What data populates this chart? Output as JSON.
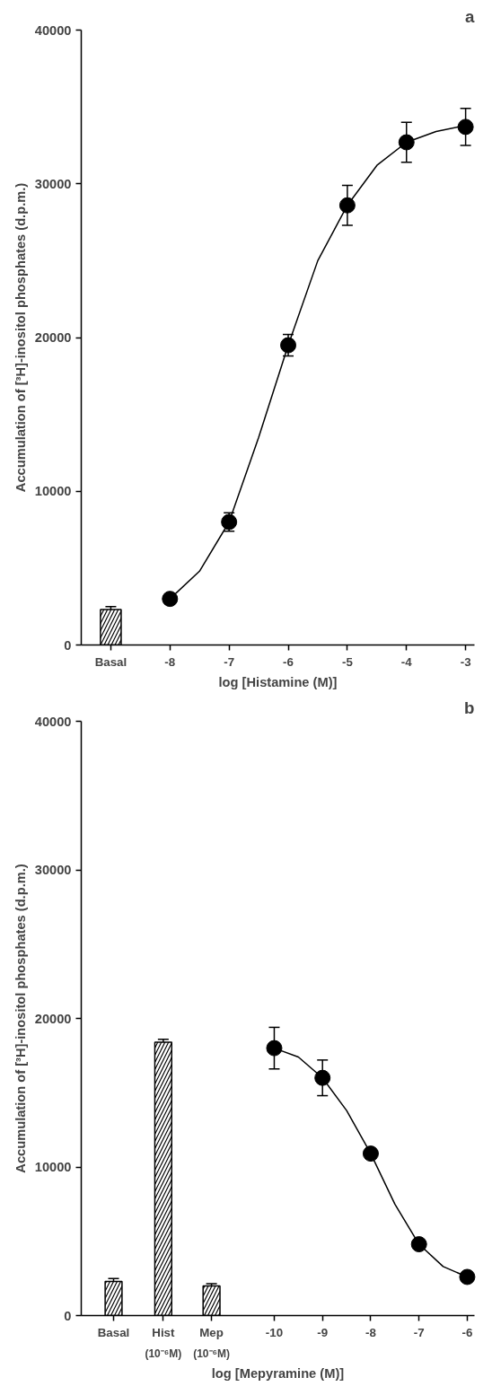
{
  "chart_data": [
    {
      "type": "scatter",
      "title": "a",
      "xlabel": "log [Histamine (M)]",
      "ylabel": "Accumulation of [³H]-inositol phosphates (d.p.m.)",
      "xlim": [
        -9.5,
        -2.85
      ],
      "ylim": [
        0,
        40000
      ],
      "xticks": [
        {
          "value": -9,
          "label": "Basal"
        },
        -8,
        -7,
        -6,
        -5,
        -4,
        -3
      ],
      "yticks": [
        0,
        10000,
        20000,
        30000,
        40000
      ],
      "grid": false,
      "marker": "circle",
      "series": [
        {
          "type": "bar",
          "color": "#000000",
          "x": [
            -9
          ],
          "values": [
            2300
          ],
          "errors": [
            200
          ]
        },
        {
          "color": "#000000",
          "x": [
            -8,
            -7,
            -6,
            -5,
            -4,
            -3
          ],
          "values": [
            3000,
            8000,
            19500,
            28600,
            32700,
            33700
          ],
          "errors": [
            null,
            600,
            700,
            1300,
            1300,
            1200
          ]
        },
        {
          "type": "line",
          "marker": "none",
          "color": "#000000",
          "x": [
            -8,
            -7.5,
            -7,
            -6.5,
            -6,
            -5.5,
            -5,
            -4.5,
            -4,
            -3.5,
            -3
          ],
          "values": [
            3000,
            4800,
            8000,
            13500,
            19500,
            25000,
            28600,
            31200,
            32700,
            33400,
            33800
          ]
        }
      ]
    },
    {
      "type": "scatter",
      "title": "b",
      "annotations": [
        "(10⁻⁶M)",
        "(10⁻⁶M)"
      ],
      "xlabel": "log [Mepyramine (M)]",
      "ylabel": "Accumulation of [³H]-inositol phosphates (d.p.m.)",
      "xlim": [
        -14,
        -5.85
      ],
      "ylim": [
        0,
        40000
      ],
      "xticks": [
        {
          "value": -13.33,
          "label": "Basal"
        },
        {
          "value": -12.3,
          "label": "Hist"
        },
        {
          "value": -11.3,
          "label": "Mep"
        },
        -10,
        -9,
        -8,
        -7,
        -6
      ],
      "yticks": [
        0,
        10000,
        20000,
        30000,
        40000
      ],
      "grid": false,
      "marker": "circle",
      "series": [
        {
          "type": "bar",
          "color": "#000000",
          "x": [
            -13.33,
            -12.3,
            -11.3
          ],
          "values": [
            2300,
            18400,
            2000
          ],
          "errors": [
            200,
            200,
            150
          ]
        },
        {
          "color": "#000000",
          "x": [
            -10,
            -9,
            -8,
            -7,
            -6
          ],
          "values": [
            18000,
            16000,
            10900,
            4800,
            2600
          ],
          "errors": [
            1400,
            1200,
            null,
            null,
            null
          ]
        },
        {
          "type": "line",
          "marker": "none",
          "color": "#000000",
          "x": [
            -10,
            -9.5,
            -9,
            -8.5,
            -8,
            -7.5,
            -7,
            -6.5,
            -6
          ],
          "values": [
            18000,
            17400,
            16000,
            13800,
            10900,
            7500,
            4800,
            3300,
            2600
          ]
        }
      ]
    }
  ]
}
